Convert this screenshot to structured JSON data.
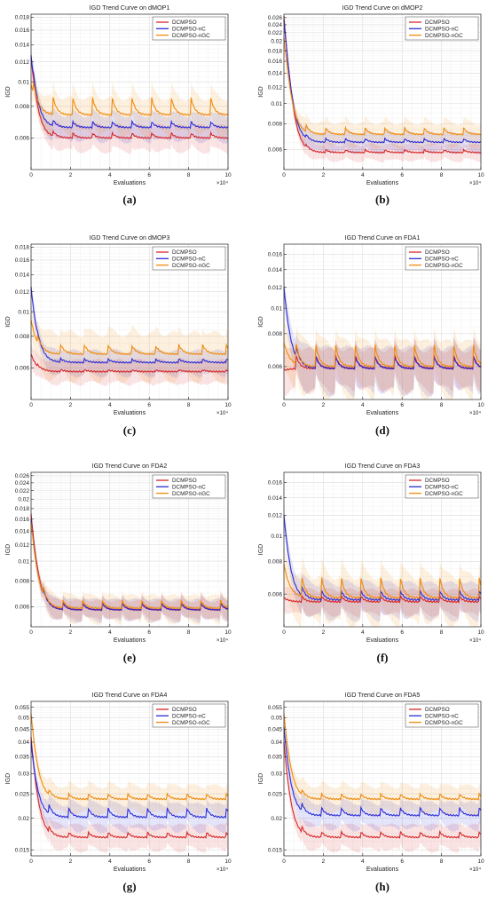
{
  "chart_data": [
    {
      "type": "line",
      "title": "IGD Trend Curve on dMOP1",
      "xlabel": "Evaluations",
      "ylabel": "IGD",
      "x_exponent": "×10⁴",
      "caption": "(a)",
      "xlim": [
        0,
        10
      ],
      "xticks": [
        0,
        2,
        4,
        6,
        8,
        10
      ],
      "ylim": [
        0.0045,
        0.0185
      ],
      "yscale": "log",
      "yticks": [
        0.006,
        0.008,
        0.01,
        0.012,
        0.014,
        0.016,
        0.018
      ],
      "ytick_labels": [
        "0.006",
        "0.008",
        "0.01",
        "0.012",
        "0.014",
        "0.016",
        "0.018"
      ],
      "grid": true,
      "legend_position": "top-right",
      "series": [
        {
          "name": "DCMPSO",
          "color": "#d62728",
          "start": 0.0125,
          "settle": 0.006,
          "spikes": 0.0003,
          "band": 0.0008
        },
        {
          "name": "DCMPSO-nC",
          "color": "#2b2bd6",
          "start": 0.0127,
          "settle": 0.0066,
          "spikes": 0.0004,
          "band": 0.0009
        },
        {
          "name": "DCMPSO-nGC",
          "color": "#f08a0a",
          "start": 0.0098,
          "settle": 0.0074,
          "spikes": 0.0014,
          "band": 0.0014
        }
      ],
      "period": 1,
      "spike_start": 0.1
    },
    {
      "type": "line",
      "title": "IGD Trend Curve on dMOP2",
      "xlabel": "Evaluations",
      "ylabel": "IGD",
      "x_exponent": "×10⁴",
      "caption": "(b)",
      "xlim": [
        0,
        10
      ],
      "xticks": [
        0,
        2,
        4,
        6,
        8,
        10
      ],
      "ylim": [
        0.0048,
        0.027
      ],
      "yscale": "log",
      "yticks": [
        0.006,
        0.008,
        0.01,
        0.012,
        0.014,
        0.016,
        0.018,
        0.02,
        0.022,
        0.024,
        0.026
      ],
      "ytick_labels": [
        "0.006",
        "0.008",
        "0.01",
        "0.012",
        "0.014",
        "0.016",
        "0.018",
        "0.02",
        "0.022",
        "0.024",
        "0.026"
      ],
      "grid": true,
      "legend_position": "top-right",
      "series": [
        {
          "name": "DCMPSO",
          "color": "#d62728",
          "start": 0.0265,
          "settle": 0.0058,
          "spikes": 0.0002,
          "band": 0.0006
        },
        {
          "name": "DCMPSO-nC",
          "color": "#2b2bd6",
          "start": 0.0255,
          "settle": 0.0065,
          "spikes": 0.0003,
          "band": 0.0008
        },
        {
          "name": "DCMPSO-nGC",
          "color": "#f08a0a",
          "start": 0.021,
          "settle": 0.0071,
          "spikes": 0.0006,
          "band": 0.0011
        }
      ],
      "period": 1,
      "spike_start": 0.1
    },
    {
      "type": "line",
      "title": "IGD Trend Curve on dMOP3",
      "xlabel": "Evaluations",
      "ylabel": "IGD",
      "x_exponent": "×10⁴",
      "caption": "(c)",
      "xlim": [
        0,
        10
      ],
      "xticks": [
        0,
        2,
        4,
        6,
        8,
        10
      ],
      "ylim": [
        0.0045,
        0.0185
      ],
      "yscale": "log",
      "yticks": [
        0.006,
        0.008,
        0.01,
        0.012,
        0.014,
        0.016,
        0.018
      ],
      "ytick_labels": [
        "0.006",
        "0.008",
        "0.01",
        "0.012",
        "0.014",
        "0.016",
        "0.018"
      ],
      "grid": true,
      "legend_position": "top-right",
      "series": [
        {
          "name": "DCMPSO",
          "color": "#d62728",
          "start": 0.0068,
          "settle": 0.0058,
          "spikes": 0.0001,
          "band": 0.0007
        },
        {
          "name": "DCMPSO-nC",
          "color": "#2b2bd6",
          "start": 0.0125,
          "settle": 0.0063,
          "spikes": 0.0002,
          "band": 0.0008
        },
        {
          "name": "DCMPSO-nGC",
          "color": "#f08a0a",
          "start": 0.0093,
          "settle": 0.0068,
          "spikes": 0.0006,
          "band": 0.0016
        }
      ],
      "period": 1.2,
      "spike_start": 0.3
    },
    {
      "type": "line",
      "title": "IGD Trend Curve on FDA1",
      "xlabel": "Evaluations",
      "ylabel": "IGD",
      "x_exponent": "×10⁴",
      "caption": "(d)",
      "xlim": [
        0,
        10
      ],
      "xticks": [
        0,
        2,
        4,
        6,
        8,
        10
      ],
      "ylim": [
        0.0045,
        0.0175
      ],
      "yscale": "log",
      "yticks": [
        0.006,
        0.008,
        0.01,
        0.012,
        0.014,
        0.016
      ],
      "ytick_labels": [
        "0.006",
        "0.008",
        "0.01",
        "0.012",
        "0.014",
        "0.016"
      ],
      "grid": true,
      "legend_position": "top-right",
      "series": [
        {
          "name": "DCMPSO",
          "color": "#d62728",
          "start": 0.0058,
          "settle": 0.0059,
          "spikes": 0.0008,
          "band": 0.0012
        },
        {
          "name": "DCMPSO-nC",
          "color": "#2b2bd6",
          "start": 0.012,
          "settle": 0.0059,
          "spikes": 0.0007,
          "band": 0.0013
        },
        {
          "name": "DCMPSO-nGC",
          "color": "#f08a0a",
          "start": 0.0074,
          "settle": 0.006,
          "spikes": 0.0014,
          "band": 0.0016
        }
      ],
      "period": 1,
      "spike_start": 0.6
    },
    {
      "type": "line",
      "title": "IGD Trend Curve on FDA2",
      "xlabel": "Evaluations",
      "ylabel": "IGD",
      "x_exponent": "×10⁴",
      "caption": "(e)",
      "xlim": [
        0,
        10
      ],
      "xticks": [
        0,
        2,
        4,
        6,
        8,
        10
      ],
      "ylim": [
        0.0048,
        0.027
      ],
      "yscale": "log",
      "yticks": [
        0.006,
        0.008,
        0.01,
        0.012,
        0.014,
        0.016,
        0.018,
        0.02,
        0.022,
        0.024,
        0.026
      ],
      "ytick_labels": [
        "0.006",
        "0.008",
        "0.01",
        "0.012",
        "0.014",
        "0.016",
        "0.018",
        "0.02",
        "0.022",
        "0.024",
        "0.026"
      ],
      "grid": true,
      "legend_position": "top-right",
      "series": [
        {
          "name": "DCMPSO",
          "color": "#d62728",
          "start": 0.017,
          "settle": 0.0058,
          "spikes": 0.0005,
          "band": 0.0007
        },
        {
          "name": "DCMPSO-nC",
          "color": "#2b2bd6",
          "start": 0.016,
          "settle": 0.0058,
          "spikes": 0.0005,
          "band": 0.0008
        },
        {
          "name": "DCMPSO-nGC",
          "color": "#f08a0a",
          "start": 0.0155,
          "settle": 0.0059,
          "spikes": 0.0006,
          "band": 0.001
        }
      ],
      "period": 1,
      "spike_start": 0.6
    },
    {
      "type": "line",
      "title": "IGD Trend Curve on FDA3",
      "xlabel": "Evaluations",
      "ylabel": "IGD",
      "x_exponent": "×10⁴",
      "caption": "(f)",
      "xlim": [
        0,
        10
      ],
      "xticks": [
        0,
        2,
        4,
        6,
        8,
        10
      ],
      "ylim": [
        0.0045,
        0.0175
      ],
      "yscale": "log",
      "yticks": [
        0.006,
        0.008,
        0.01,
        0.012,
        0.014,
        0.016
      ],
      "ytick_labels": [
        "0.006",
        "0.008",
        "0.01",
        "0.012",
        "0.014",
        "0.016"
      ],
      "grid": true,
      "legend_position": "top-right",
      "series": [
        {
          "name": "DCMPSO",
          "color": "#d62728",
          "start": 0.0058,
          "settle": 0.0056,
          "spikes": 0.0003,
          "band": 0.0007
        },
        {
          "name": "DCMPSO-nC",
          "color": "#2b2bd6",
          "start": 0.012,
          "settle": 0.0057,
          "spikes": 0.0005,
          "band": 0.001
        },
        {
          "name": "DCMPSO-nGC",
          "color": "#f08a0a",
          "start": 0.0078,
          "settle": 0.0058,
          "spikes": 0.0012,
          "band": 0.0014
        }
      ],
      "period": 1,
      "spike_start": 0.9
    },
    {
      "type": "line",
      "title": "IGD Trend Curve on FDA4",
      "xlabel": "Evaluations",
      "ylabel": "IGD",
      "x_exponent": "×10⁴",
      "caption": "(g)",
      "xlim": [
        0,
        10
      ],
      "xticks": [
        0,
        2,
        4,
        6,
        8,
        10
      ],
      "ylim": [
        0.0142,
        0.058
      ],
      "yscale": "log",
      "yticks": [
        0.015,
        0.02,
        0.025,
        0.03,
        0.035,
        0.04,
        0.045,
        0.05,
        0.055
      ],
      "ytick_labels": [
        "0.015",
        "0.02",
        "0.025",
        "0.03",
        "0.035",
        "0.04",
        "0.045",
        "0.05",
        "0.055"
      ],
      "grid": true,
      "legend_position": "top-right",
      "series": [
        {
          "name": "DCMPSO",
          "color": "#d62728",
          "start": 0.042,
          "settle": 0.0168,
          "spikes": 0.0008,
          "band": 0.0022
        },
        {
          "name": "DCMPSO-nC",
          "color": "#2b2bd6",
          "start": 0.04,
          "settle": 0.0202,
          "spikes": 0.0018,
          "band": 0.0028
        },
        {
          "name": "DCMPSO-nGC",
          "color": "#f08a0a",
          "start": 0.052,
          "settle": 0.0238,
          "spikes": 0.0012,
          "band": 0.0034
        }
      ],
      "period": 1,
      "spike_start": 0.9
    },
    {
      "type": "line",
      "title": "IGD Trend Curve on FDA5",
      "xlabel": "Evaluations",
      "ylabel": "IGD",
      "x_exponent": "×10⁴",
      "caption": "(h)",
      "xlim": [
        0,
        10
      ],
      "xticks": [
        0,
        2,
        4,
        6,
        8,
        10
      ],
      "ylim": [
        0.0142,
        0.058
      ],
      "yscale": "log",
      "yticks": [
        0.015,
        0.02,
        0.025,
        0.03,
        0.035,
        0.04,
        0.045,
        0.05,
        0.055
      ],
      "ytick_labels": [
        "0.015",
        "0.02",
        "0.025",
        "0.03",
        "0.035",
        "0.04",
        "0.045",
        "0.05",
        "0.055"
      ],
      "grid": true,
      "legend_position": "top-right",
      "series": [
        {
          "name": "DCMPSO",
          "color": "#d62728",
          "start": 0.04,
          "settle": 0.0168,
          "spikes": 0.0009,
          "band": 0.0022
        },
        {
          "name": "DCMPSO-nC",
          "color": "#2b2bd6",
          "start": 0.046,
          "settle": 0.0205,
          "spikes": 0.0016,
          "band": 0.0028
        },
        {
          "name": "DCMPSO-nGC",
          "color": "#f08a0a",
          "start": 0.052,
          "settle": 0.0238,
          "spikes": 0.0012,
          "band": 0.0034
        }
      ],
      "period": 1,
      "spike_start": 0.9
    }
  ]
}
